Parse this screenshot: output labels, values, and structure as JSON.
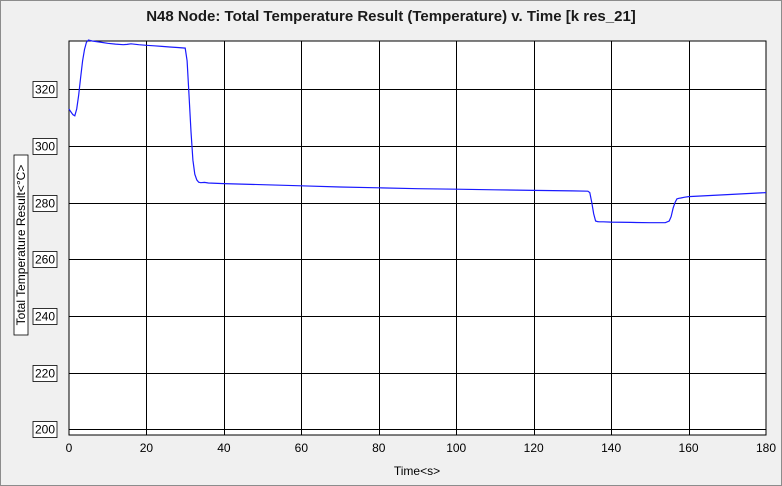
{
  "window": {
    "title": "N48 Node: Total Temperature Result (Temperature) v. Time [k res_21]"
  },
  "chart_data": {
    "type": "line",
    "title": "N48 Node: Total Temperature Result (Temperature) v. Time [k res_21]",
    "xlabel": "Time<s>",
    "ylabel": "Total Temperature Result<°C>",
    "xlim": [
      0,
      180
    ],
    "ylim": [
      198,
      337
    ],
    "xticks": [
      0,
      20,
      40,
      60,
      80,
      100,
      120,
      140,
      160,
      180
    ],
    "yticks": [
      200,
      220,
      240,
      260,
      280,
      300,
      320
    ],
    "grid": true,
    "series": [
      {
        "color": "#1a1aff",
        "x": [
          0,
          0.5,
          1,
          1.5,
          2,
          2.5,
          3,
          3.5,
          4,
          4.5,
          5,
          6,
          8,
          10,
          12,
          14,
          15,
          16,
          18,
          20,
          22,
          24,
          26,
          28,
          30,
          30.5,
          31,
          31.5,
          32,
          32.5,
          33,
          33.5,
          34,
          35,
          36,
          40,
          50,
          60,
          70,
          80,
          90,
          100,
          110,
          120,
          130,
          134,
          134.5,
          135,
          135.5,
          136,
          136.5,
          137,
          138,
          140,
          145,
          150,
          154,
          155,
          155.5,
          156,
          156.5,
          157,
          157.5,
          158,
          159,
          160,
          170,
          180
        ],
        "y": [
          313,
          312,
          311,
          310.6,
          313,
          318,
          324,
          330,
          334,
          336.5,
          337.3,
          337,
          336.6,
          336.2,
          335.9,
          335.7,
          335.8,
          336,
          335.7,
          335.5,
          335.3,
          335.1,
          334.9,
          334.7,
          334.5,
          330,
          318,
          305,
          295,
          290,
          288,
          287.2,
          287,
          287.1,
          286.9,
          286.7,
          286.3,
          285.9,
          285.5,
          285.2,
          284.9,
          284.7,
          284.5,
          284.3,
          284.1,
          284,
          283.5,
          280,
          276,
          273.5,
          273.3,
          273.2,
          273.2,
          273.1,
          273,
          272.9,
          272.9,
          273.5,
          275,
          278,
          280,
          281.3,
          281.5,
          281.6,
          281.9,
          282.1,
          282.8,
          283.5
        ]
      }
    ]
  }
}
